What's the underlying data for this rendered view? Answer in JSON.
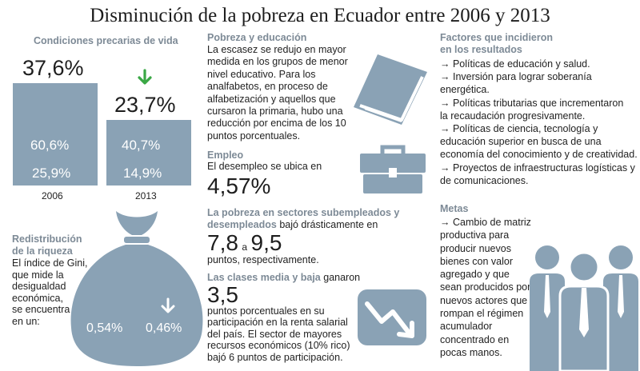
{
  "title": "Disminución de la pobreza en Ecuador entre 2006 y 2013",
  "colors": {
    "accent": "#8aa2b5",
    "heading": "#7d8a96",
    "arrow_green": "#3aa845"
  },
  "conditions": {
    "heading": "Condiciones precarias de vida",
    "bar_2006": {
      "top_value": "37,6%",
      "mid_value": "60,6%",
      "bottom_value": "25,9%",
      "year": "2006"
    },
    "bar_2013": {
      "top_value": "23,7%",
      "mid_value": "40,7%",
      "bottom_value": "14,9%",
      "year": "2013"
    },
    "down_arrow_icon": "green-down-arrow-icon"
  },
  "redistribution": {
    "heading_line1": "Redistribución",
    "heading_line2": "de la riqueza",
    "text": [
      "El índice de Gini,",
      "que mide la",
      "desigualdad",
      "económica,",
      "se encuentra",
      "en un:"
    ],
    "value_before": "0,54%",
    "value_after": "0,46%",
    "icon": "money-bag-icon"
  },
  "education": {
    "heading": "Pobreza y educación",
    "text": [
      "La escasez se redujo en mayor",
      "medida en los grupos de menor",
      "nivel educativo. Para los",
      "analfabetos, en proceso de",
      "alfabetización y aquellos que",
      "cursaron la primaria, hubo una",
      "reducción por encima de los 10",
      "puntos porcentuales."
    ],
    "icon": "book-icon"
  },
  "employment": {
    "heading": "Empleo",
    "text": "El desempleo se ubica en",
    "value": "4,57%",
    "icon": "briefcase-icon"
  },
  "underemployed": {
    "heading_line1": "La pobreza en sectores subempleados y",
    "heading_part2": "desempleados",
    "text_after_heading": " bajó drásticamente en",
    "value_from": "7,8",
    "connector": "a",
    "value_to": "9,5",
    "text_end": "puntos, respectivamente."
  },
  "classes": {
    "heading": "Las clases media y baja",
    "text_after_heading": " ganaron",
    "value": "3,5",
    "text": [
      "puntos porcentuales en su",
      "participación en la renta salarial",
      "del país. El sector de mayores",
      "recursos económicos (10% rico)",
      "bajó 6 puntos de participación."
    ],
    "icon": "trend-down-icon"
  },
  "factors": {
    "heading_line1": "Factores que incidieron",
    "heading_line2": "en los resultados",
    "items": [
      [
        "→ Políticas de educación y salud."
      ],
      [
        "→ Inversión para lograr soberanía",
        "energética."
      ],
      [
        "→ Políticas tributarias que incrementaron",
        "la recaudación progresivamente."
      ],
      [
        "→ Políticas de ciencia, tecnología y",
        "educación superior en busca de una",
        "economía del conocimiento y de creatividad."
      ],
      [
        "→ Proyectos de infraestructuras logísticas y",
        "de comunicaciones."
      ]
    ]
  },
  "goals": {
    "heading": "Metas",
    "text": [
      "→ Cambio de matriz",
      "productiva para",
      "producir nuevos",
      "bienes con valor",
      "agregado y que",
      "sean producidos por",
      "nuevos actores que",
      "rompan el régimen",
      "acumulador",
      "concentrado en",
      "pocas manos."
    ],
    "icon": "business-people-icon"
  }
}
